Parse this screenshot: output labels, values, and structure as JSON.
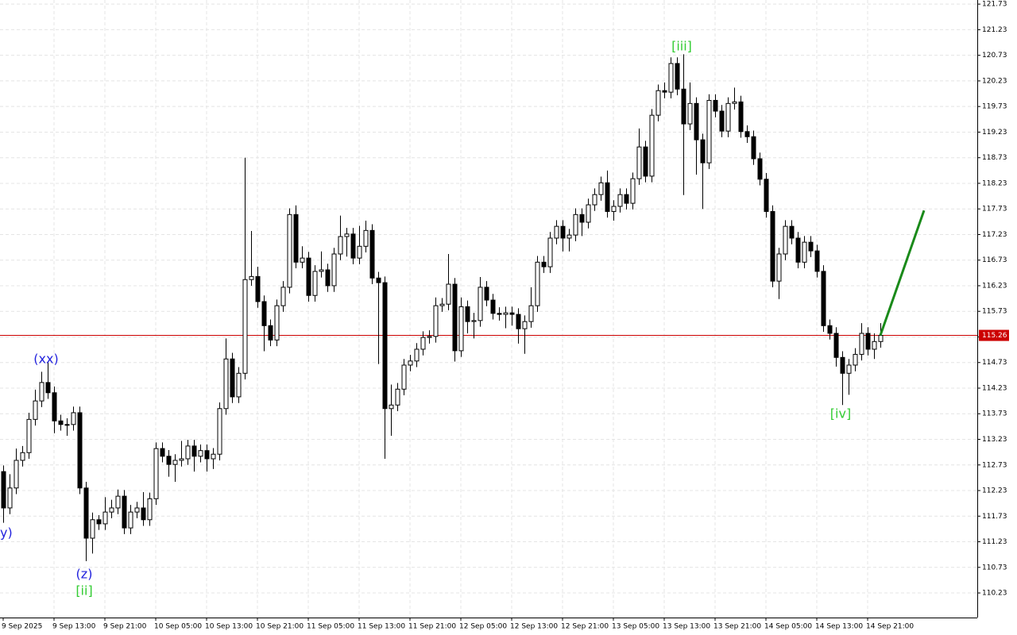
{
  "chart_data": {
    "type": "candlestick",
    "categories": [
      "9 Sep 2025",
      null,
      null,
      null,
      null,
      null,
      null,
      null,
      "9 Sep 13:00",
      null,
      null,
      null,
      null,
      null,
      null,
      null,
      "9 Sep 21:00",
      null,
      null,
      null,
      null,
      null,
      null,
      null,
      "10 Sep 05:00",
      null,
      null,
      null,
      null,
      null,
      null,
      null,
      "10 Sep 13:00",
      null,
      null,
      null,
      null,
      null,
      null,
      null,
      "10 Sep 21:00",
      null,
      null,
      null,
      null,
      null,
      null,
      null,
      "11 Sep 05:00",
      null,
      null,
      null,
      null,
      null,
      null,
      null,
      "11 Sep 13:00",
      null,
      null,
      null,
      null,
      null,
      null,
      null,
      "11 Sep 21:00",
      null,
      null,
      null,
      null,
      null,
      null,
      null,
      "12 Sep 05:00",
      null,
      null,
      null,
      null,
      null,
      null,
      null,
      "12 Sep 13:00",
      null,
      null,
      null,
      null,
      null,
      null,
      null,
      "12 Sep 21:00",
      null,
      null,
      null,
      null,
      null,
      null,
      null,
      "13 Sep 05:00",
      null,
      null,
      null,
      null,
      null,
      null,
      null,
      "13 Sep 13:00",
      null,
      null,
      null,
      null,
      null,
      null,
      null,
      "13 Sep 21:00",
      null,
      null,
      null,
      null,
      null,
      null,
      null,
      "14 Sep 05:00",
      null,
      null,
      null,
      null,
      null,
      null,
      null,
      "14 Sep 13:00",
      null,
      null,
      null,
      null,
      null,
      null,
      null,
      "14 Sep 21:00",
      null,
      null
    ],
    "open": [
      112.6,
      111.89,
      112.28,
      112.82,
      112.97,
      113.62,
      113.98,
      114.34,
      114.14,
      113.59,
      113.52,
      113.52,
      113.75,
      112.28,
      111.3,
      111.66,
      111.58,
      111.81,
      111.89,
      112.12,
      111.5,
      111.81,
      111.89,
      111.66,
      112.07,
      113.05,
      112.9,
      112.74,
      112.82,
      112.85,
      113.1,
      112.9,
      113.01,
      112.85,
      112.94,
      113.83,
      114.8,
      114.06,
      114.52,
      116.35,
      116.41,
      115.92,
      115.45,
      115.17,
      115.84,
      116.2,
      117.62,
      116.69,
      116.77,
      116.04,
      116.51,
      116.54,
      116.23,
      116.85,
      117.19,
      117.24,
      116.77,
      117.0,
      117.31,
      116.38,
      116.29,
      113.83,
      113.9,
      114.21,
      114.68,
      114.76,
      114.99,
      115.22,
      115.24,
      115.84,
      115.87,
      116.26,
      114.96,
      115.82,
      115.53,
      115.55,
      116.2,
      115.95,
      115.69,
      115.67,
      115.7,
      115.67,
      115.39,
      115.53,
      115.84,
      116.69,
      116.6,
      117.16,
      117.39,
      117.16,
      117.22,
      117.62,
      117.47,
      117.81,
      118.01,
      118.24,
      117.68,
      117.78,
      118.01,
      117.84,
      118.32,
      118.94,
      118.37,
      119.56,
      120.04,
      120.01,
      120.57,
      120.07,
      119.39,
      119.79,
      119.08,
      118.63,
      119.85,
      119.64,
      119.25,
      119.79,
      119.82,
      119.24,
      119.14,
      118.71,
      118.31,
      117.68,
      116.32,
      116.85,
      117.39,
      117.16,
      116.69,
      117.08,
      116.91,
      116.51,
      115.45,
      115.3,
      114.83,
      114.52,
      114.68,
      114.89,
      115.3,
      114.99,
      115.14
    ],
    "high": [
      112.72,
      112.55,
      113.05,
      113.1,
      113.75,
      114.2,
      114.55,
      114.75,
      114.26,
      113.71,
      113.64,
      113.87,
      113.87,
      112.4,
      111.8,
      111.75,
      112.1,
      112.05,
      112.25,
      112.24,
      111.95,
      112.01,
      112.2,
      112.19,
      113.17,
      113.17,
      113.02,
      112.94,
      113.2,
      113.22,
      113.22,
      113.13,
      113.13,
      113.06,
      113.95,
      115.2,
      114.92,
      114.64,
      118.73,
      117.3,
      116.6,
      116.04,
      115.57,
      115.96,
      116.32,
      117.74,
      117.8,
      117.0,
      116.89,
      116.63,
      116.9,
      116.66,
      116.97,
      117.6,
      117.36,
      117.36,
      117.4,
      117.5,
      117.43,
      116.5,
      116.41,
      114.3,
      114.33,
      114.8,
      114.88,
      115.11,
      115.34,
      115.36,
      116.0,
      115.99,
      116.85,
      116.38,
      116.0,
      115.94,
      115.7,
      116.4,
      116.32,
      116.07,
      115.81,
      115.82,
      115.82,
      115.79,
      115.65,
      116.2,
      116.81,
      116.81,
      117.28,
      117.51,
      117.51,
      117.34,
      117.74,
      117.74,
      117.93,
      118.13,
      118.36,
      118.48,
      117.9,
      118.13,
      118.13,
      118.44,
      119.3,
      119.06,
      119.68,
      120.16,
      120.2,
      120.69,
      120.69,
      120.75,
      120.2,
      119.91,
      119.2,
      119.97,
      119.97,
      119.76,
      119.91,
      120.1,
      119.94,
      119.36,
      119.26,
      118.83,
      118.43,
      117.8,
      116.97,
      117.51,
      117.51,
      117.28,
      117.2,
      117.2,
      117.03,
      116.63,
      115.57,
      115.42,
      114.95,
      114.8,
      115.01,
      115.5,
      115.42,
      115.3,
      115.5
    ],
    "low": [
      111.6,
      111.77,
      112.16,
      112.7,
      112.85,
      113.5,
      113.86,
      114.02,
      113.35,
      113.4,
      113.3,
      113.4,
      112.16,
      110.85,
      111.0,
      111.46,
      111.46,
      111.69,
      111.77,
      111.38,
      111.38,
      111.69,
      111.54,
      111.54,
      111.95,
      112.78,
      112.5,
      112.4,
      112.7,
      112.73,
      112.6,
      112.78,
      112.6,
      112.65,
      112.82,
      113.71,
      113.94,
      113.94,
      114.4,
      116.23,
      115.8,
      114.95,
      115.05,
      115.05,
      115.72,
      116.08,
      116.57,
      116.57,
      115.92,
      115.92,
      116.39,
      116.11,
      116.11,
      116.73,
      116.8,
      116.65,
      116.65,
      116.88,
      116.26,
      114.7,
      112.85,
      113.3,
      113.78,
      114.09,
      114.56,
      114.64,
      114.87,
      115.1,
      115.12,
      115.72,
      115.75,
      114.75,
      114.84,
      115.3,
      115.2,
      115.43,
      115.83,
      115.57,
      115.55,
      115.4,
      115.45,
      115.1,
      114.9,
      115.41,
      115.72,
      116.48,
      116.48,
      117.04,
      116.9,
      116.9,
      117.1,
      117.2,
      117.35,
      117.69,
      117.89,
      117.56,
      117.5,
      117.66,
      117.72,
      117.72,
      118.2,
      118.25,
      118.25,
      119.44,
      119.89,
      119.89,
      119.95,
      118.0,
      119.27,
      118.4,
      117.73,
      118.51,
      119.52,
      119.13,
      119.13,
      119.67,
      119.12,
      119.02,
      118.59,
      118.19,
      117.56,
      116.2,
      115.97,
      116.73,
      117.04,
      116.57,
      116.57,
      116.79,
      116.39,
      115.33,
      115.18,
      114.65,
      113.9,
      114.1,
      114.56,
      114.77,
      114.87,
      114.8,
      115.02
    ],
    "close": [
      111.89,
      112.28,
      112.82,
      112.97,
      113.62,
      113.98,
      114.34,
      114.14,
      113.59,
      113.52,
      113.52,
      113.75,
      112.28,
      111.3,
      111.66,
      111.58,
      111.81,
      111.89,
      112.12,
      111.5,
      111.81,
      111.89,
      111.66,
      112.07,
      113.05,
      112.9,
      112.74,
      112.82,
      112.85,
      113.1,
      112.9,
      113.01,
      112.85,
      112.94,
      113.83,
      114.8,
      114.06,
      114.52,
      116.35,
      116.41,
      115.92,
      115.45,
      115.17,
      115.84,
      116.2,
      117.62,
      116.69,
      116.77,
      116.04,
      116.51,
      116.54,
      116.23,
      116.85,
      117.19,
      117.24,
      116.77,
      117.0,
      117.31,
      116.38,
      116.29,
      113.83,
      113.9,
      114.21,
      114.68,
      114.76,
      114.99,
      115.22,
      115.24,
      115.84,
      115.87,
      116.26,
      114.96,
      115.82,
      115.53,
      115.55,
      116.2,
      115.95,
      115.69,
      115.67,
      115.7,
      115.67,
      115.39,
      115.53,
      115.84,
      116.69,
      116.6,
      117.16,
      117.39,
      117.16,
      117.22,
      117.62,
      117.47,
      117.81,
      118.01,
      118.24,
      117.68,
      117.78,
      118.01,
      117.84,
      118.32,
      118.94,
      118.37,
      119.56,
      120.04,
      120.01,
      120.57,
      120.07,
      119.39,
      119.79,
      119.08,
      118.63,
      119.85,
      119.64,
      119.25,
      119.79,
      119.82,
      119.24,
      119.14,
      118.71,
      118.31,
      117.68,
      116.32,
      116.85,
      117.39,
      117.16,
      116.69,
      117.08,
      116.91,
      116.51,
      115.45,
      115.3,
      114.83,
      114.52,
      114.68,
      114.89,
      115.3,
      114.99,
      115.14,
      115.26
    ],
    "up_color": "#ffffff",
    "down_color": "#000000",
    "wick_color": "#000000",
    "ylim": [
      109.75,
      121.81
    ],
    "yticks": [
      121.73,
      121.23,
      120.73,
      120.23,
      119.73,
      119.23,
      118.73,
      118.23,
      117.73,
      117.23,
      116.73,
      116.23,
      115.73,
      115.23,
      114.73,
      114.23,
      113.73,
      113.23,
      112.73,
      112.23,
      111.73,
      111.23,
      110.73,
      110.23
    ],
    "grid": true,
    "current_price": 115.26,
    "current_price_color": "#cc0000",
    "forecast": {
      "values": [
        115.26,
        117.7
      ],
      "color": "#1a8a1a"
    },
    "annotations": [
      {
        "text": "y)",
        "color": "#2222dd"
      },
      {
        "text": "(xx)",
        "color": "#2222dd"
      },
      {
        "text": "(z)",
        "color": "#2222dd"
      },
      {
        "text": "[ii]",
        "color": "#33cc33"
      },
      {
        "text": "[iii]",
        "color": "#33cc33"
      },
      {
        "text": "[iv]",
        "color": "#33cc33"
      }
    ]
  }
}
